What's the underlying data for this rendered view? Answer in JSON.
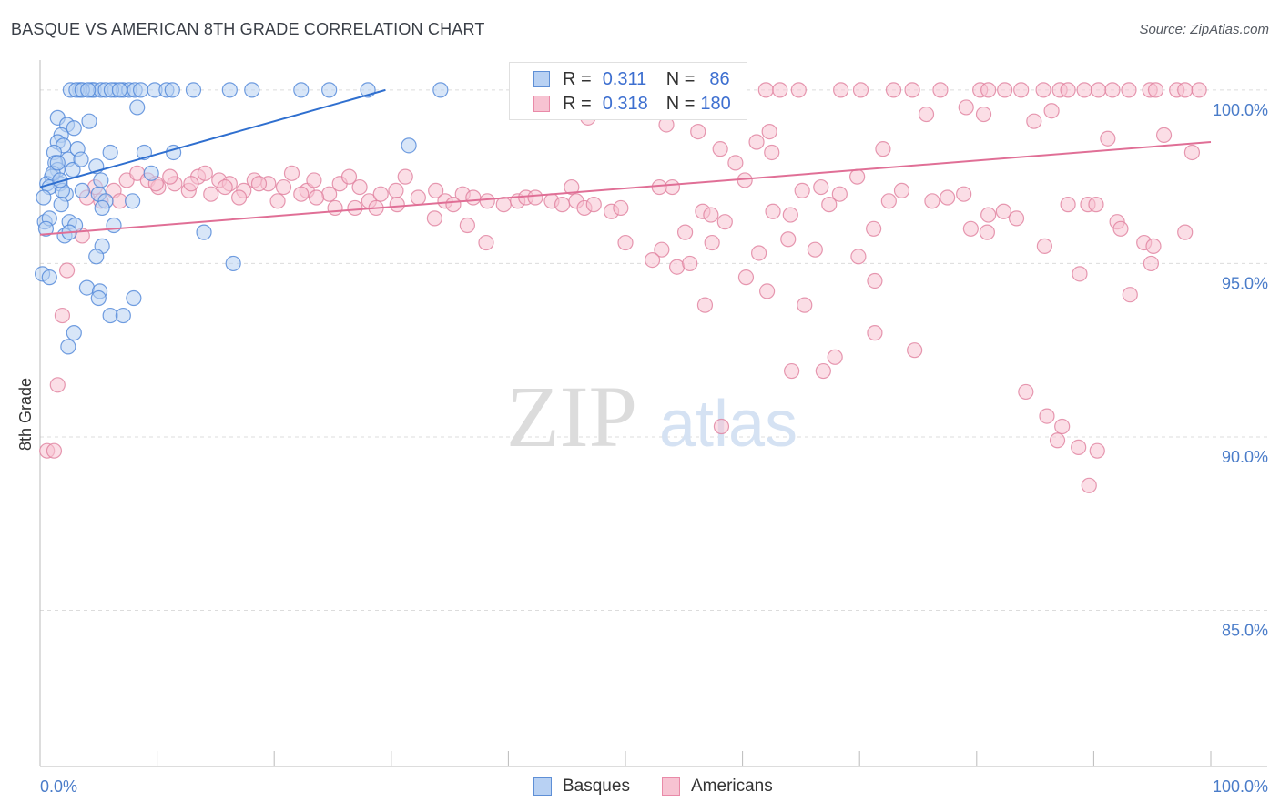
{
  "title": "BASQUE VS AMERICAN 8TH GRADE CORRELATION CHART",
  "source": "Source: ZipAtlas.com",
  "watermark": {
    "zip": "ZIP",
    "atlas": "atlas"
  },
  "colors": {
    "blue_fill": "#b8d1f3",
    "blue_stroke": "#4f86d8",
    "blue_line": "#2f6fcf",
    "pink_fill": "#f7c3d2",
    "pink_stroke": "#e07f9e",
    "pink_line": "#e06f96",
    "tick_text": "#4a7cc9",
    "grid": "#dcdcdc"
  },
  "stats_box": {
    "rows": [
      {
        "r_label": "R =",
        "r_value": "0.311",
        "n_label": "N =",
        "n_value": "86",
        "swatch": "blue"
      },
      {
        "r_label": "R =",
        "r_value": "0.318",
        "n_label": "N =",
        "n_value": "180",
        "swatch": "pink"
      }
    ]
  },
  "legend": {
    "items": [
      {
        "label": "Basques",
        "swatch": "blue"
      },
      {
        "label": "Americans",
        "swatch": "pink"
      }
    ]
  },
  "chart_data": {
    "type": "scatter",
    "title": "BASQUE VS AMERICAN 8TH GRADE CORRELATION CHART",
    "xlabel": "",
    "ylabel": "8th Grade",
    "xlim": [
      0,
      100
    ],
    "ylim": [
      80.5,
      100.6
    ],
    "x_tick_labels": [
      "0.0%",
      "100.0%"
    ],
    "y_ticks": [
      100,
      95,
      90,
      85
    ],
    "y_tick_labels": [
      "100.0%",
      "95.0%",
      "90.0%",
      "85.0%"
    ],
    "grid": true,
    "legend_position": "bottom-center",
    "series": [
      {
        "name": "Basques",
        "color": "#4f86d8",
        "trend": {
          "x": [
            0,
            29.5
          ],
          "y": [
            97.2,
            100.0
          ]
        },
        "points": [
          [
            3.4,
            100
          ],
          [
            4.4,
            100
          ],
          [
            4.6,
            100
          ],
          [
            5.2,
            100
          ],
          [
            6.4,
            100
          ],
          [
            7.1,
            100
          ],
          [
            7.6,
            100
          ],
          [
            8.1,
            100
          ],
          [
            8.6,
            100
          ],
          [
            9.8,
            100
          ],
          [
            10.8,
            100
          ],
          [
            11.3,
            100
          ],
          [
            13.1,
            100
          ],
          [
            16.2,
            100
          ],
          [
            18.1,
            100
          ],
          [
            22.3,
            100
          ],
          [
            24.7,
            100
          ],
          [
            28.0,
            100
          ],
          [
            34.2,
            100
          ],
          [
            2.6,
            100
          ],
          [
            3.1,
            100
          ],
          [
            3.6,
            100
          ],
          [
            4.1,
            100
          ],
          [
            5.6,
            100
          ],
          [
            6.1,
            100
          ],
          [
            6.8,
            100
          ],
          [
            8.3,
            99.5
          ],
          [
            1.5,
            99.2
          ],
          [
            2.3,
            99.0
          ],
          [
            2.9,
            98.9
          ],
          [
            4.2,
            99.1
          ],
          [
            1.8,
            98.7
          ],
          [
            1.5,
            98.5
          ],
          [
            2.0,
            98.4
          ],
          [
            1.2,
            98.2
          ],
          [
            2.4,
            98.0
          ],
          [
            3.2,
            98.3
          ],
          [
            6.0,
            98.2
          ],
          [
            8.9,
            98.2
          ],
          [
            11.4,
            98.2
          ],
          [
            31.5,
            98.4
          ],
          [
            1.3,
            97.9
          ],
          [
            1.5,
            97.7
          ],
          [
            2.8,
            97.7
          ],
          [
            4.8,
            97.8
          ],
          [
            1.0,
            97.5
          ],
          [
            1.7,
            97.3
          ],
          [
            0.6,
            97.3
          ],
          [
            1.1,
            97.6
          ],
          [
            2.2,
            97.0
          ],
          [
            3.6,
            97.1
          ],
          [
            0.8,
            97.2
          ],
          [
            1.9,
            97.1
          ],
          [
            5.0,
            97.0
          ],
          [
            5.6,
            96.8
          ],
          [
            7.9,
            96.8
          ],
          [
            1.8,
            96.7
          ],
          [
            0.4,
            96.2
          ],
          [
            0.8,
            96.3
          ],
          [
            2.5,
            96.2
          ],
          [
            3.0,
            96.1
          ],
          [
            6.3,
            96.1
          ],
          [
            2.1,
            95.8
          ],
          [
            14.0,
            95.9
          ],
          [
            5.3,
            95.5
          ],
          [
            4.8,
            95.2
          ],
          [
            0.2,
            94.7
          ],
          [
            0.8,
            94.6
          ],
          [
            16.5,
            95.0
          ],
          [
            4.0,
            94.3
          ],
          [
            5.1,
            94.2
          ],
          [
            5.0,
            94.0
          ],
          [
            8.0,
            94.0
          ],
          [
            6.0,
            93.5
          ],
          [
            7.1,
            93.5
          ],
          [
            2.9,
            93.0
          ],
          [
            2.4,
            92.6
          ],
          [
            0.5,
            96.0
          ],
          [
            2.5,
            95.9
          ],
          [
            1.5,
            97.9
          ],
          [
            5.3,
            96.6
          ],
          [
            0.3,
            96.9
          ],
          [
            1.7,
            97.4
          ],
          [
            3.5,
            98.0
          ],
          [
            5.2,
            97.4
          ],
          [
            9.5,
            97.6
          ]
        ]
      },
      {
        "name": "Americans",
        "color": "#e07f9e",
        "trend": {
          "x": [
            0,
            100
          ],
          "y": [
            95.83,
            98.5
          ]
        },
        "points": [
          [
            59.5,
            100
          ],
          [
            62.0,
            100
          ],
          [
            63.2,
            100
          ],
          [
            64.8,
            100
          ],
          [
            68.4,
            100
          ],
          [
            70.1,
            100
          ],
          [
            72.9,
            100
          ],
          [
            74.5,
            100
          ],
          [
            76.9,
            100
          ],
          [
            80.3,
            100
          ],
          [
            81.0,
            100
          ],
          [
            82.4,
            100
          ],
          [
            83.8,
            100
          ],
          [
            85.7,
            100
          ],
          [
            87.1,
            100
          ],
          [
            87.8,
            100
          ],
          [
            89.2,
            100
          ],
          [
            90.4,
            100
          ],
          [
            91.6,
            100
          ],
          [
            93.0,
            100
          ],
          [
            94.8,
            100
          ],
          [
            95.3,
            100
          ],
          [
            97.1,
            100
          ],
          [
            97.8,
            100
          ],
          [
            99.0,
            100
          ],
          [
            46.8,
            99.2
          ],
          [
            50.0,
            99.4
          ],
          [
            53.5,
            99.0
          ],
          [
            56.2,
            98.8
          ],
          [
            72.0,
            98.3
          ],
          [
            75.7,
            99.3
          ],
          [
            79.1,
            99.5
          ],
          [
            80.6,
            99.3
          ],
          [
            84.9,
            99.1
          ],
          [
            86.4,
            99.4
          ],
          [
            61.2,
            98.5
          ],
          [
            58.1,
            98.3
          ],
          [
            62.5,
            98.2
          ],
          [
            59.4,
            97.9
          ],
          [
            62.3,
            98.8
          ],
          [
            91.2,
            98.6
          ],
          [
            96.0,
            98.7
          ],
          [
            98.4,
            98.2
          ],
          [
            45.4,
            97.2
          ],
          [
            52.9,
            97.2
          ],
          [
            54.0,
            97.2
          ],
          [
            60.2,
            97.4
          ],
          [
            65.1,
            97.1
          ],
          [
            66.7,
            97.2
          ],
          [
            68.3,
            97.0
          ],
          [
            73.6,
            97.1
          ],
          [
            76.2,
            96.8
          ],
          [
            77.5,
            96.9
          ],
          [
            78.9,
            97.0
          ],
          [
            81.0,
            96.4
          ],
          [
            82.3,
            96.5
          ],
          [
            83.4,
            96.3
          ],
          [
            87.8,
            96.7
          ],
          [
            89.5,
            96.7
          ],
          [
            90.2,
            96.7
          ],
          [
            92.0,
            96.2
          ],
          [
            94.3,
            95.6
          ],
          [
            95.1,
            95.5
          ],
          [
            97.8,
            95.9
          ],
          [
            56.6,
            96.5
          ],
          [
            57.3,
            96.4
          ],
          [
            63.9,
            95.7
          ],
          [
            66.2,
            95.4
          ],
          [
            69.9,
            95.2
          ],
          [
            71.3,
            94.5
          ],
          [
            79.5,
            96.0
          ],
          [
            80.9,
            95.9
          ],
          [
            85.8,
            95.5
          ],
          [
            88.8,
            94.7
          ],
          [
            93.1,
            94.1
          ],
          [
            94.9,
            95.0
          ],
          [
            92.3,
            96.0
          ],
          [
            69.8,
            97.5
          ],
          [
            67.4,
            96.7
          ],
          [
            71.2,
            96.0
          ],
          [
            72.5,
            96.8
          ],
          [
            64.1,
            96.4
          ],
          [
            62.6,
            96.5
          ],
          [
            58.5,
            96.2
          ],
          [
            55.1,
            95.9
          ],
          [
            53.1,
            95.4
          ],
          [
            50.0,
            95.6
          ],
          [
            54.4,
            94.9
          ],
          [
            57.4,
            95.6
          ],
          [
            55.5,
            95.0
          ],
          [
            61.4,
            95.3
          ],
          [
            52.3,
            95.1
          ],
          [
            60.3,
            94.6
          ],
          [
            62.1,
            94.2
          ],
          [
            56.8,
            93.8
          ],
          [
            65.3,
            93.8
          ],
          [
            71.3,
            93.0
          ],
          [
            74.7,
            92.5
          ],
          [
            67.9,
            92.3
          ],
          [
            64.2,
            91.9
          ],
          [
            66.9,
            91.9
          ],
          [
            84.2,
            91.3
          ],
          [
            86.0,
            90.6
          ],
          [
            58.2,
            90.3
          ],
          [
            87.3,
            90.3
          ],
          [
            86.9,
            89.9
          ],
          [
            88.7,
            89.7
          ],
          [
            90.3,
            89.6
          ],
          [
            89.6,
            88.6
          ],
          [
            0.6,
            89.6
          ],
          [
            1.2,
            89.6
          ],
          [
            1.5,
            91.5
          ],
          [
            1.9,
            93.5
          ],
          [
            2.3,
            94.8
          ],
          [
            3.6,
            95.8
          ],
          [
            5.2,
            96.8
          ],
          [
            6.3,
            97.1
          ],
          [
            7.4,
            97.4
          ],
          [
            8.3,
            97.6
          ],
          [
            9.2,
            97.4
          ],
          [
            10.1,
            97.2
          ],
          [
            11.5,
            97.3
          ],
          [
            12.7,
            97.1
          ],
          [
            13.5,
            97.5
          ],
          [
            14.6,
            97.0
          ],
          [
            15.3,
            97.4
          ],
          [
            16.2,
            97.3
          ],
          [
            17.4,
            97.1
          ],
          [
            18.3,
            97.4
          ],
          [
            19.5,
            97.3
          ],
          [
            20.8,
            97.2
          ],
          [
            21.5,
            97.6
          ],
          [
            22.8,
            97.1
          ],
          [
            23.4,
            97.4
          ],
          [
            24.7,
            97.0
          ],
          [
            25.6,
            97.3
          ],
          [
            26.4,
            97.5
          ],
          [
            27.3,
            97.2
          ],
          [
            28.1,
            96.8
          ],
          [
            29.1,
            97.0
          ],
          [
            30.4,
            97.1
          ],
          [
            31.2,
            97.5
          ],
          [
            32.3,
            96.9
          ],
          [
            33.8,
            97.1
          ],
          [
            34.6,
            96.8
          ],
          [
            35.3,
            96.7
          ],
          [
            36.1,
            97.0
          ],
          [
            37.0,
            96.9
          ],
          [
            38.2,
            96.8
          ],
          [
            39.6,
            96.7
          ],
          [
            40.8,
            96.8
          ],
          [
            41.5,
            96.9
          ],
          [
            42.3,
            96.9
          ],
          [
            43.7,
            96.8
          ],
          [
            44.6,
            96.7
          ],
          [
            45.8,
            96.8
          ],
          [
            46.5,
            96.6
          ],
          [
            47.3,
            96.7
          ],
          [
            48.8,
            96.5
          ],
          [
            49.6,
            96.6
          ],
          [
            4.0,
            96.9
          ],
          [
            4.7,
            97.2
          ],
          [
            6.8,
            96.8
          ],
          [
            9.9,
            97.3
          ],
          [
            11.1,
            97.5
          ],
          [
            12.9,
            97.3
          ],
          [
            14.1,
            97.6
          ],
          [
            15.8,
            97.2
          ],
          [
            17.0,
            96.9
          ],
          [
            18.7,
            97.3
          ],
          [
            20.3,
            96.8
          ],
          [
            22.3,
            97.0
          ],
          [
            23.6,
            96.9
          ],
          [
            25.2,
            96.6
          ],
          [
            26.9,
            96.6
          ],
          [
            28.7,
            96.6
          ],
          [
            30.5,
            96.7
          ],
          [
            33.7,
            96.3
          ],
          [
            36.5,
            96.1
          ],
          [
            38.1,
            95.6
          ]
        ]
      }
    ]
  }
}
